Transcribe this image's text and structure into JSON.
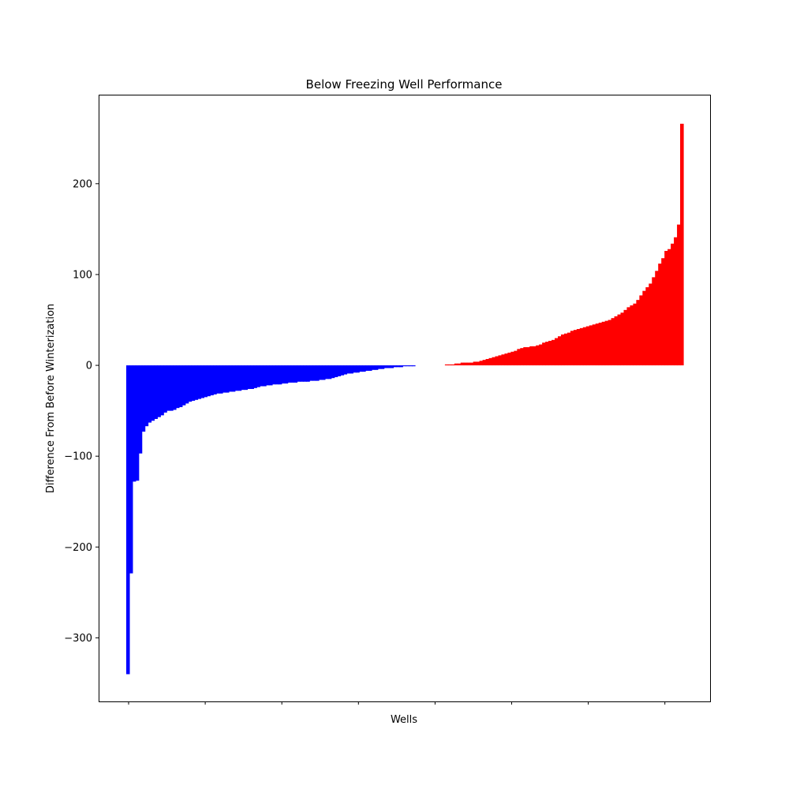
{
  "chart_data": {
    "type": "bar",
    "title": "Below Freezing Well Performance",
    "xlabel": "Wells",
    "ylabel": "Difference From Before Winterization",
    "ylim": [
      -370,
      298
    ],
    "y_ticks": [
      -300,
      -200,
      -100,
      0,
      100,
      200
    ],
    "y_tick_labels": [
      "−300",
      "−200",
      "−100",
      "0",
      "100",
      "200"
    ],
    "x_tick_count": 8,
    "grid": false,
    "legend": "none",
    "colors": {
      "negative": "#0000ff",
      "positive": "#ff0000"
    },
    "series": [
      {
        "color": "#0000ff",
        "values": [
          -340,
          -229,
          -128,
          -127,
          -97,
          -73,
          -67,
          -63,
          -61,
          -59,
          -57,
          -55,
          -52,
          -50,
          -50,
          -49,
          -47,
          -46,
          -44,
          -42,
          -40,
          -39,
          -38,
          -37,
          -36,
          -35,
          -34,
          -33,
          -32,
          -31,
          -31,
          -30,
          -30,
          -29,
          -29,
          -28,
          -28,
          -27,
          -27,
          -26,
          -26,
          -25,
          -24,
          -23,
          -23,
          -22,
          -22,
          -21,
          -21,
          -21,
          -20,
          -20,
          -19,
          -19,
          -19,
          -18,
          -18,
          -18,
          -18,
          -17,
          -17,
          -17,
          -16,
          -16,
          -15,
          -15,
          -14,
          -13,
          -12,
          -11,
          -10,
          -9,
          -9,
          -8,
          -8,
          -7,
          -7,
          -6,
          -6,
          -5,
          -5,
          -4,
          -4,
          -3,
          -3,
          -3,
          -2,
          -2,
          -2,
          -1,
          -1,
          -1,
          -1
        ]
      },
      {
        "color": "#ff0000",
        "values": [
          0,
          0,
          0,
          0,
          0,
          1,
          1,
          1,
          2,
          2,
          3,
          3,
          3,
          3,
          4,
          4,
          5,
          6,
          7,
          8,
          9,
          10,
          11,
          12,
          13,
          14,
          15,
          16,
          18,
          19,
          20,
          20,
          21,
          21,
          22,
          23,
          25,
          26,
          27,
          28,
          30,
          32,
          34,
          35,
          36,
          38,
          39,
          40,
          41,
          42,
          43,
          44,
          45,
          46,
          47,
          48,
          49,
          50,
          52,
          54,
          56,
          58,
          61,
          64,
          66,
          68,
          72,
          77,
          82,
          86,
          90,
          97,
          104,
          112,
          118,
          126,
          128,
          134,
          141,
          155,
          266
        ]
      }
    ]
  }
}
